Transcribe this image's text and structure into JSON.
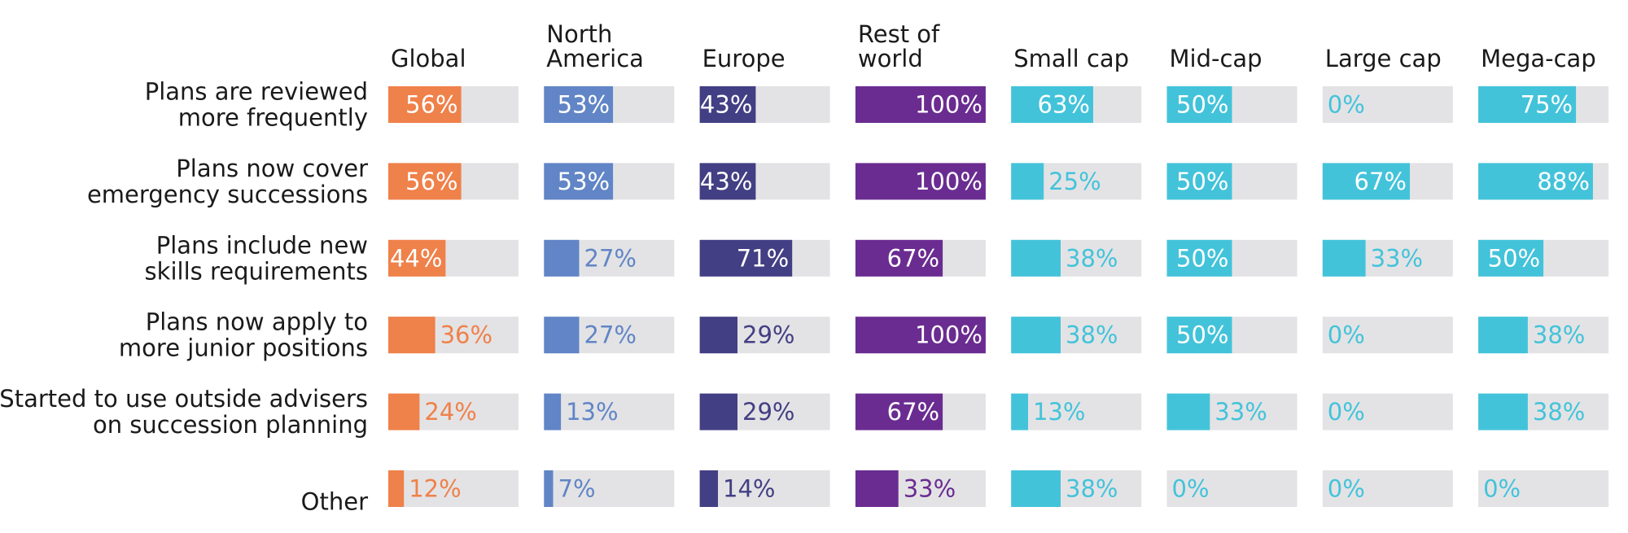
{
  "chart_data": {
    "type": "bar",
    "orientation": "horizontal",
    "layout": "small-multiples",
    "xlim": [
      0,
      100
    ],
    "value_suffix": "%",
    "track_color": "#e3e3e5",
    "grid": false,
    "categories": [
      [
        "Plans are reviewed",
        "more frequently"
      ],
      [
        "Plans now cover",
        "emergency successions"
      ],
      [
        "Plans include new",
        "skills requirements"
      ],
      [
        "Plans now apply to",
        "more junior positions"
      ],
      [
        "Started to use outside advisers",
        "on succession planning"
      ],
      [
        "Other"
      ]
    ],
    "series": [
      {
        "name": [
          "Global"
        ],
        "color": "#ef814a",
        "values": [
          56,
          56,
          44,
          36,
          24,
          12
        ]
      },
      {
        "name": [
          "North",
          "America"
        ],
        "color": "#6185c6",
        "values": [
          53,
          53,
          27,
          27,
          13,
          7
        ]
      },
      {
        "name": [
          "Europe"
        ],
        "color": "#433f84",
        "values": [
          43,
          43,
          71,
          29,
          29,
          14
        ]
      },
      {
        "name": [
          "Rest of",
          "world"
        ],
        "color": "#6a2c91",
        "values": [
          100,
          100,
          67,
          100,
          67,
          33
        ]
      },
      {
        "name": [
          "Small cap"
        ],
        "color": "#43c3da",
        "values": [
          63,
          25,
          38,
          38,
          13,
          38
        ]
      },
      {
        "name": [
          "Mid-cap"
        ],
        "color": "#43c3da",
        "values": [
          50,
          50,
          50,
          50,
          33,
          0
        ]
      },
      {
        "name": [
          "Large cap"
        ],
        "color": "#43c3da",
        "values": [
          0,
          67,
          33,
          0,
          0,
          0
        ]
      },
      {
        "name": [
          "Mega-cap"
        ],
        "color": "#43c3da",
        "values": [
          75,
          88,
          50,
          38,
          38,
          0
        ]
      }
    ]
  }
}
